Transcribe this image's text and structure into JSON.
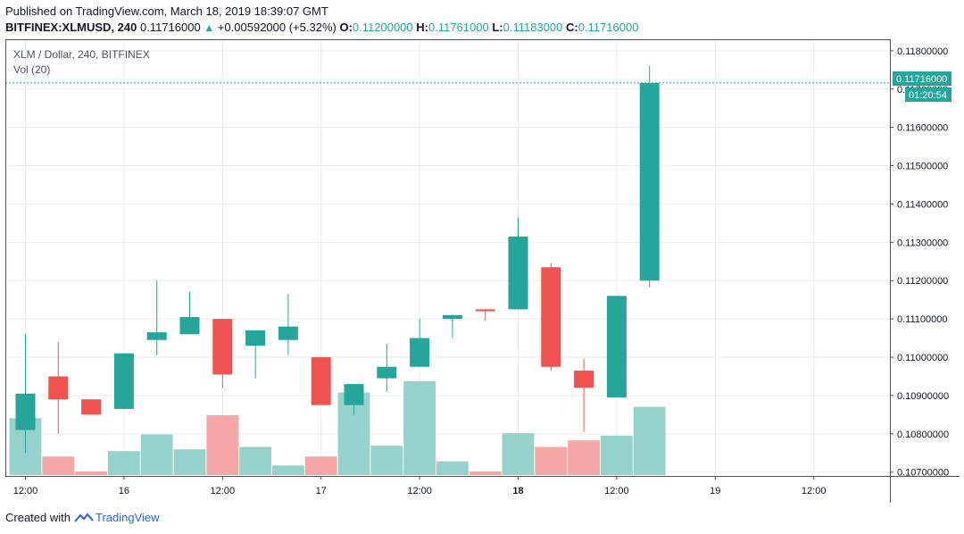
{
  "header": {
    "published": "Published on TradingView.com, March 18, 2019 18:39:07 GMT",
    "symbol": "BITFINEX:XLMUSD, 240",
    "last": "0.11716000",
    "change": "+0.00592000 (+5.32%)",
    "o_label": "O:",
    "o_value": "0.11200000",
    "h_label": "H:",
    "h_value": "0.11761000",
    "l_label": "L:",
    "l_value": "0.11183000",
    "c_label": "C:",
    "c_value": "0.11716000"
  },
  "legend": {
    "title": "XLM / Dollar, 240, BITFINEX",
    "vol": "Vol (20)"
  },
  "footer": {
    "created_with": "Created with",
    "brand": "TradingView"
  },
  "colors": {
    "up": "#26a69a",
    "down": "#ef5350",
    "vol_up": "#94d2cb",
    "vol_down": "#f5a7a6",
    "grid": "#e9edf2"
  },
  "chart_data": {
    "type": "candlestick",
    "y_range": [
      0.1069,
      0.1183
    ],
    "y_ticks": [
      "0.11800000",
      "0.11700000",
      "0.11600000",
      "0.11500000",
      "0.11400000",
      "0.11300000",
      "0.11200000",
      "0.11100000",
      "0.11000000",
      "0.10900000",
      "0.10800000",
      "0.10700000"
    ],
    "x_ticks": [
      "12:00",
      "16",
      "12:00",
      "17",
      "12:00",
      "18",
      "12:00",
      "19",
      "12:00"
    ],
    "price_label": "0.11716000",
    "countdown_label": "01:20:54",
    "current_price": 0.11716,
    "candles": [
      {
        "o": 0.1081,
        "h": 0.1106,
        "l": 0.1075,
        "c": 0.10905
      },
      {
        "o": 0.1095,
        "h": 0.1104,
        "l": 0.108,
        "c": 0.1089
      },
      {
        "o": 0.1089,
        "h": 0.1089,
        "l": 0.1085,
        "c": 0.1085
      },
      {
        "o": 0.10865,
        "h": 0.1101,
        "l": 0.10865,
        "c": 0.1101
      },
      {
        "o": 0.11045,
        "h": 0.112,
        "l": 0.11005,
        "c": 0.11065
      },
      {
        "o": 0.1106,
        "h": 0.1117,
        "l": 0.1106,
        "c": 0.11105
      },
      {
        "o": 0.111,
        "h": 0.111,
        "l": 0.1092,
        "c": 0.10955
      },
      {
        "o": 0.1103,
        "h": 0.1107,
        "l": 0.10945,
        "c": 0.1107
      },
      {
        "o": 0.11045,
        "h": 0.11165,
        "l": 0.11005,
        "c": 0.1108
      },
      {
        "o": 0.11,
        "h": 0.11,
        "l": 0.10875,
        "c": 0.10875
      },
      {
        "o": 0.10875,
        "h": 0.1093,
        "l": 0.1085,
        "c": 0.1093
      },
      {
        "o": 0.10945,
        "h": 0.11035,
        "l": 0.1091,
        "c": 0.10975
      },
      {
        "o": 0.10975,
        "h": 0.111,
        "l": 0.10975,
        "c": 0.1105
      },
      {
        "o": 0.111,
        "h": 0.1111,
        "l": 0.1105,
        "c": 0.1111
      },
      {
        "o": 0.11125,
        "h": 0.11125,
        "l": 0.11095,
        "c": 0.1112
      },
      {
        "o": 0.11125,
        "h": 0.11365,
        "l": 0.11125,
        "c": 0.11315
      },
      {
        "o": 0.11235,
        "h": 0.11245,
        "l": 0.10965,
        "c": 0.10975
      },
      {
        "o": 0.10965,
        "h": 0.10995,
        "l": 0.10805,
        "c": 0.1092
      },
      {
        "o": 0.10895,
        "h": 0.1116,
        "l": 0.10895,
        "c": 0.1116
      },
      {
        "o": 0.112,
        "h": 0.11761,
        "l": 0.11183,
        "c": 0.11716
      }
    ],
    "volume_fraction": [
      0.95,
      0.31,
      0.06,
      0.4,
      0.68,
      0.43,
      1.0,
      0.47,
      0.16,
      0.31,
      1.38,
      0.49,
      1.57,
      0.23,
      0.06,
      0.7,
      0.47,
      0.58,
      0.66,
      1.14
    ]
  }
}
